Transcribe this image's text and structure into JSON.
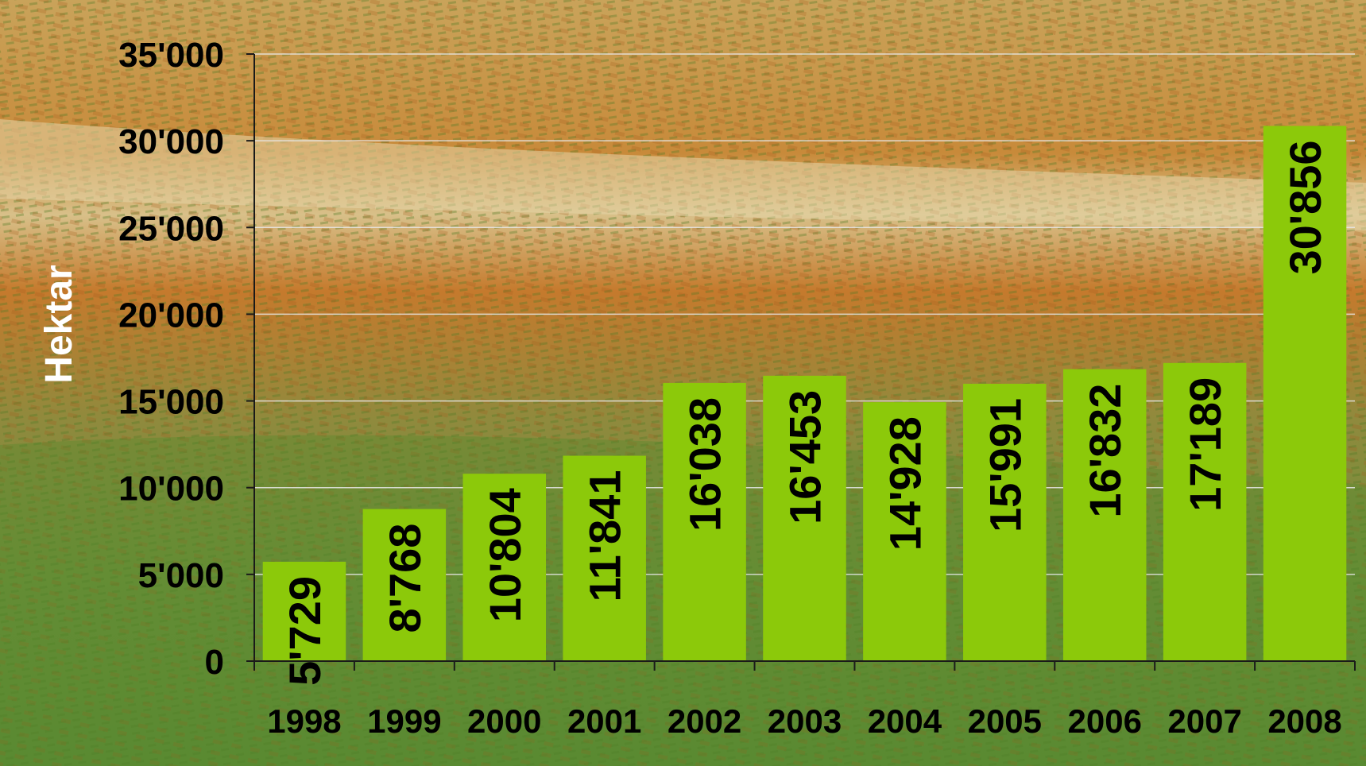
{
  "chart_data": {
    "type": "bar",
    "categories": [
      "1998",
      "1999",
      "2000",
      "2001",
      "2002",
      "2003",
      "2004",
      "2005",
      "2006",
      "2007",
      "2008"
    ],
    "values": [
      5729,
      8768,
      10804,
      11841,
      16038,
      16453,
      14928,
      15991,
      16832,
      17189,
      30856
    ],
    "value_labels": [
      "5'729",
      "8'768",
      "10'804",
      "11'841",
      "16'038",
      "16'453",
      "14'928",
      "15'991",
      "16'832",
      "17'189",
      "30'856"
    ],
    "ylabel": "Hektar",
    "ylim": [
      0,
      35000
    ],
    "yticks": [
      0,
      5000,
      10000,
      15000,
      20000,
      25000,
      30000,
      35000
    ],
    "ytick_labels": [
      "0",
      "5'000",
      "10'000",
      "15'000",
      "20'000",
      "25'000",
      "30'000",
      "35'000"
    ],
    "grid": true,
    "background": "photo of vineyard rows on hillside",
    "bar_color": "#8cc90a",
    "text_color": "#000000",
    "ylabel_color": "#ffffff"
  }
}
